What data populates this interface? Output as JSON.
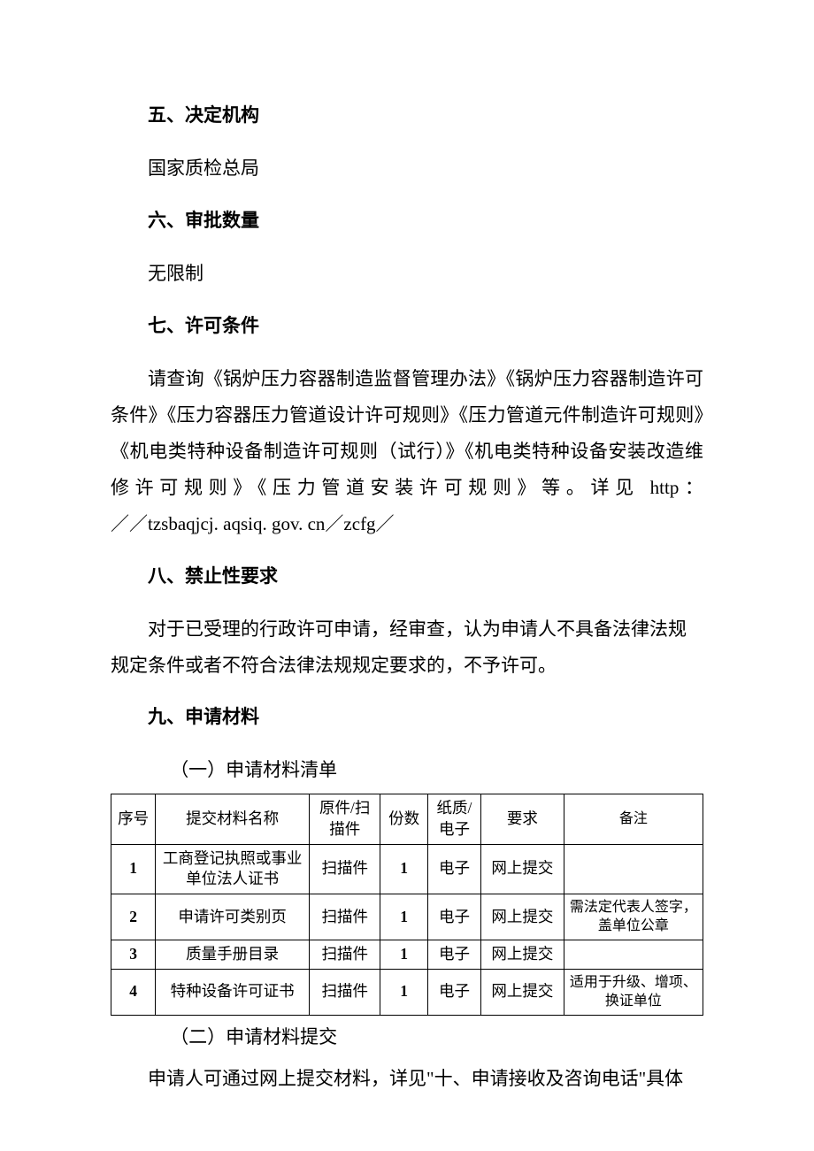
{
  "sections": {
    "s5": {
      "heading": "五、决定机构",
      "body": "国家质检总局"
    },
    "s6": {
      "heading": "六、审批数量",
      "body": "无限制"
    },
    "s7": {
      "heading": "七、许可条件",
      "body_main": "请查询《锅炉压力容器制造监督管理办法》《锅炉压力容器制造许可条件》《压力容器压力管道设计许可规则》《压力管道元件制造许可规则》《机电类特种设备制造许可规则（试行）》《机电类特种设备安装改造维修许可规则》《压力管道安装许可规则》等。详见 http：",
      "body_last": "／／tzsbaqjcj. aqsiq. gov. cn／zcfg／"
    },
    "s8": {
      "heading": "八、禁止性要求",
      "body": "对于已受理的行政许可申请，经审查，认为申请人不具备法律法规规定条件或者不符合法律法规规定要求的，不予许可。"
    },
    "s9": {
      "heading": "九、申请材料",
      "sub1": "（一）申请材料清单",
      "sub2": "（二）申请材料提交",
      "closing": "申请人可通过网上提交材料，详见\"十、申请接收及咨询电话\"具体"
    }
  },
  "table": {
    "columns": [
      "序号",
      "提交材料名称",
      "原件/扫描件",
      "份数",
      "纸质/电子",
      "要求",
      "备注"
    ],
    "rows": [
      {
        "seq": "1",
        "name": "工商登记执照或事业单位法人证书",
        "scan": "扫描件",
        "copies": "1",
        "medium": "电子",
        "req": "网上提交",
        "note": ""
      },
      {
        "seq": "2",
        "name": "申请许可类别页",
        "scan": "扫描件",
        "copies": "1",
        "medium": "电子",
        "req": "网上提交",
        "note": "需法定代表人签字，盖单位公章"
      },
      {
        "seq": "3",
        "name": "质量手册目录",
        "scan": "扫描件",
        "copies": "1",
        "medium": "电子",
        "req": "网上提交",
        "note": ""
      },
      {
        "seq": "4",
        "name": "特种设备许可证书",
        "scan": "扫描件",
        "copies": "1",
        "medium": "电子",
        "req": "网上提交",
        "note": "适用于升级、增项、换证单位"
      }
    ]
  }
}
